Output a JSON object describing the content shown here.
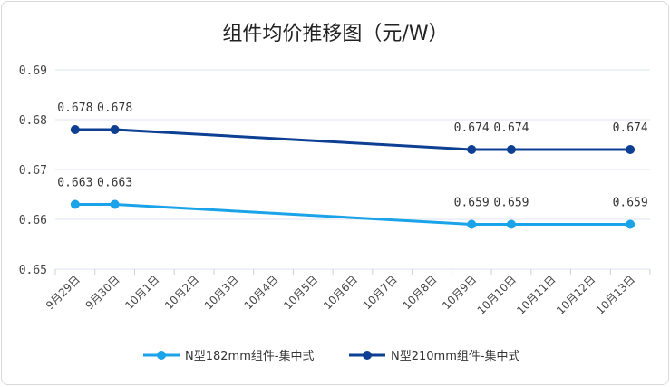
{
  "chart_data": {
    "type": "line",
    "title": "组件均价推移图（元/W）",
    "xlabel": "",
    "ylabel": "",
    "categories": [
      "9月29日",
      "9月30日",
      "10月1日",
      "10月2日",
      "10月3日",
      "10月4日",
      "10月5日",
      "10月6日",
      "10月7日",
      "10月8日",
      "10月9日",
      "10月10日",
      "10月11日",
      "10月12日",
      "10月13日"
    ],
    "ylim": [
      0.65,
      0.69
    ],
    "yticks": [
      "0.65",
      "0.66",
      "0.67",
      "0.68",
      "0.69"
    ],
    "grid": true,
    "legend": "bottom",
    "series": [
      {
        "name": "N型182mm组件-集中式",
        "color": "#1aa3e8",
        "points": [
          {
            "category": "9月29日",
            "value": 0.663,
            "label": "0.663"
          },
          {
            "category": "9月30日",
            "value": 0.663,
            "label": "0.663"
          },
          {
            "category": "10月9日",
            "value": 0.659,
            "label": "0.659"
          },
          {
            "category": "10月10日",
            "value": 0.659,
            "label": "0.659"
          },
          {
            "category": "10月13日",
            "value": 0.659,
            "label": "0.659"
          }
        ]
      },
      {
        "name": "N型210mm组件-集中式",
        "color": "#0d3f93",
        "points": [
          {
            "category": "9月29日",
            "value": 0.678,
            "label": "0.678"
          },
          {
            "category": "9月30日",
            "value": 0.678,
            "label": "0.678"
          },
          {
            "category": "10月9日",
            "value": 0.674,
            "label": "0.674"
          },
          {
            "category": "10月10日",
            "value": 0.674,
            "label": "0.674"
          },
          {
            "category": "10月13日",
            "value": 0.674,
            "label": "0.674"
          }
        ]
      }
    ]
  }
}
